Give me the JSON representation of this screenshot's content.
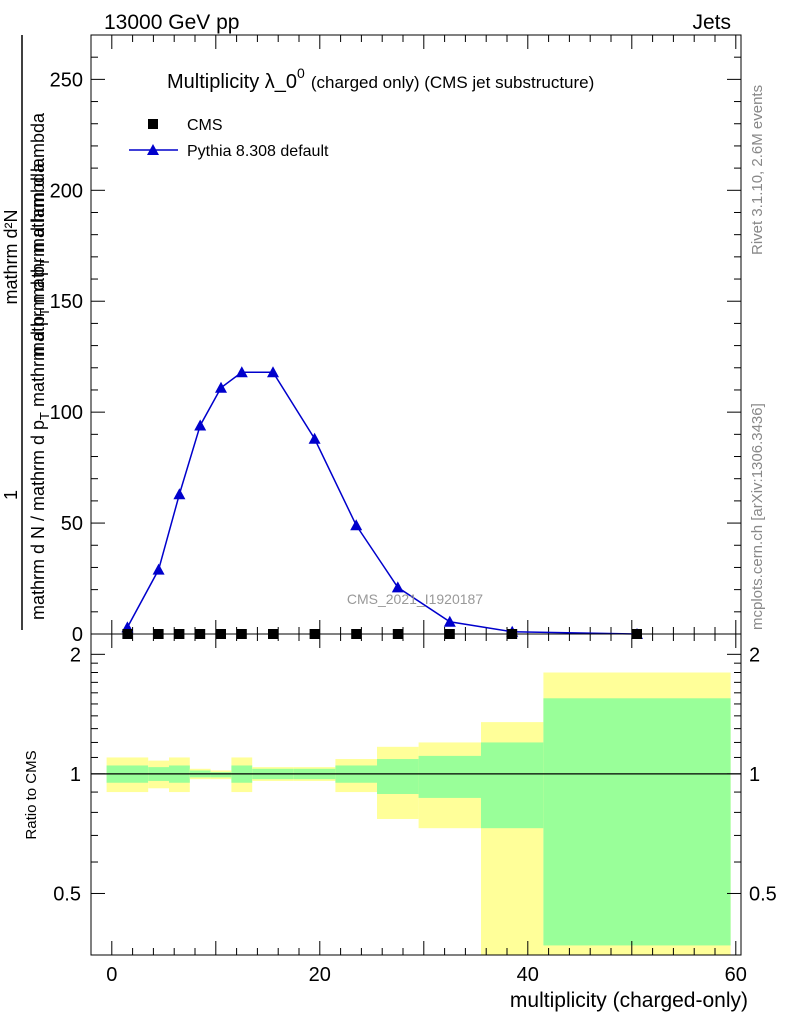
{
  "header": {
    "left": "13000 GeV pp",
    "right": "Jets"
  },
  "side_labels": {
    "events": "Rivet 3.1.10,  2.6M events",
    "site": "mcplots.cern.ch [arXiv:1306.3436]"
  },
  "watermark": "CMS_2021_I1920187",
  "main_title": {
    "main": "Multiplicity λ_0",
    "superscript": "0",
    "suffix": "(charged only) (CMS jet substructure)"
  },
  "ylabel_main": {
    "numerator": "mathrm d²N",
    "denominator_line1": "mathrm d p",
    "denominator_sub1": "T",
    "denominator_line1b": " mathrm d lambda",
    "one": "1",
    "frac2_line": "mathrm d N / mathrm d p",
    "frac2_sub": "T",
    "frac2_tail": " mathrm d p",
    "frac2_sub2": "T",
    "frac2_tail2": " mathrm d lambda"
  },
  "ylabel_ratio": "Ratio to CMS",
  "xlabel": "multiplicity (charged-only)",
  "colors": {
    "mc": "#0000cc",
    "band_inner": "#99ff99",
    "band_outer": "#ffff99",
    "data": "#000000"
  },
  "chart_data": [
    {
      "type": "line",
      "panel": "main",
      "ylim": [
        0,
        270
      ],
      "xlim": [
        -2,
        60.5
      ],
      "yticks": [
        0,
        50,
        100,
        150,
        200,
        250
      ],
      "ytick_labels": [
        "0",
        "50",
        "100",
        "150",
        "200",
        "250"
      ],
      "legend": [
        "CMS",
        "Pythia 8.308 default"
      ],
      "legend_position": "top-left",
      "series": [
        {
          "name": "CMS",
          "marker": "square",
          "x": [
            1.5,
            4.5,
            6.5,
            8.5,
            10.5,
            12.5,
            15.5,
            19.5,
            23.5,
            27.5,
            32.5,
            38.5,
            50.5
          ],
          "values": [
            0,
            0,
            0,
            0,
            0,
            0,
            0,
            0,
            0,
            0,
            0,
            0,
            0
          ]
        },
        {
          "name": "Pythia 8.308 default",
          "marker": "triangle",
          "x": [
            1.5,
            4.5,
            6.5,
            8.5,
            10.5,
            12.5,
            15.5,
            19.5,
            23.5,
            27.5,
            32.5,
            38.5,
            50.5
          ],
          "values": [
            3,
            29,
            63,
            94,
            111,
            118,
            118,
            88,
            49,
            21,
            5.5,
            1,
            0
          ]
        }
      ]
    },
    {
      "type": "area",
      "panel": "ratio",
      "ylim": [
        0.35,
        2.25
      ],
      "yticks": [
        0.5,
        1,
        2
      ],
      "ytick_labels": [
        "0.5",
        "1",
        "2"
      ],
      "xticks": [
        0,
        20,
        40,
        60
      ],
      "xtick_labels": [
        "0",
        "20",
        "40",
        "60"
      ],
      "reference_line": 1,
      "bins": [
        {
          "x0": -0.5,
          "x1": 3.5,
          "inner": [
            0.95,
            1.05
          ],
          "outer": [
            0.9,
            1.1
          ]
        },
        {
          "x0": 3.5,
          "x1": 5.5,
          "inner": [
            0.96,
            1.04
          ],
          "outer": [
            0.92,
            1.08
          ]
        },
        {
          "x0": 5.5,
          "x1": 7.5,
          "inner": [
            0.95,
            1.05
          ],
          "outer": [
            0.9,
            1.1
          ]
        },
        {
          "x0": 7.5,
          "x1": 9.5,
          "inner": [
            0.98,
            1.02
          ],
          "outer": [
            0.97,
            1.03
          ]
        },
        {
          "x0": 9.5,
          "x1": 11.5,
          "inner": [
            0.98,
            1.01
          ],
          "outer": [
            0.97,
            1.02
          ]
        },
        {
          "x0": 11.5,
          "x1": 13.5,
          "inner": [
            0.95,
            1.05
          ],
          "outer": [
            0.9,
            1.1
          ]
        },
        {
          "x0": 13.5,
          "x1": 17.5,
          "inner": [
            0.97,
            1.03
          ],
          "outer": [
            0.96,
            1.04
          ]
        },
        {
          "x0": 17.5,
          "x1": 21.5,
          "inner": [
            0.97,
            1.03
          ],
          "outer": [
            0.96,
            1.04
          ]
        },
        {
          "x0": 21.5,
          "x1": 25.5,
          "inner": [
            0.95,
            1.05
          ],
          "outer": [
            0.9,
            1.09
          ]
        },
        {
          "x0": 25.5,
          "x1": 29.5,
          "inner": [
            0.89,
            1.09
          ],
          "outer": [
            0.77,
            1.17
          ]
        },
        {
          "x0": 29.5,
          "x1": 35.5,
          "inner": [
            0.87,
            1.11
          ],
          "outer": [
            0.73,
            1.2
          ]
        },
        {
          "x0": 35.5,
          "x1": 41.5,
          "inner": [
            0.73,
            1.2
          ],
          "outer": [
            0.35,
            1.35
          ]
        },
        {
          "x0": 41.5,
          "x1": 59.5,
          "inner": [
            0.37,
            1.55
          ],
          "outer": [
            0.35,
            1.8
          ]
        }
      ]
    }
  ]
}
